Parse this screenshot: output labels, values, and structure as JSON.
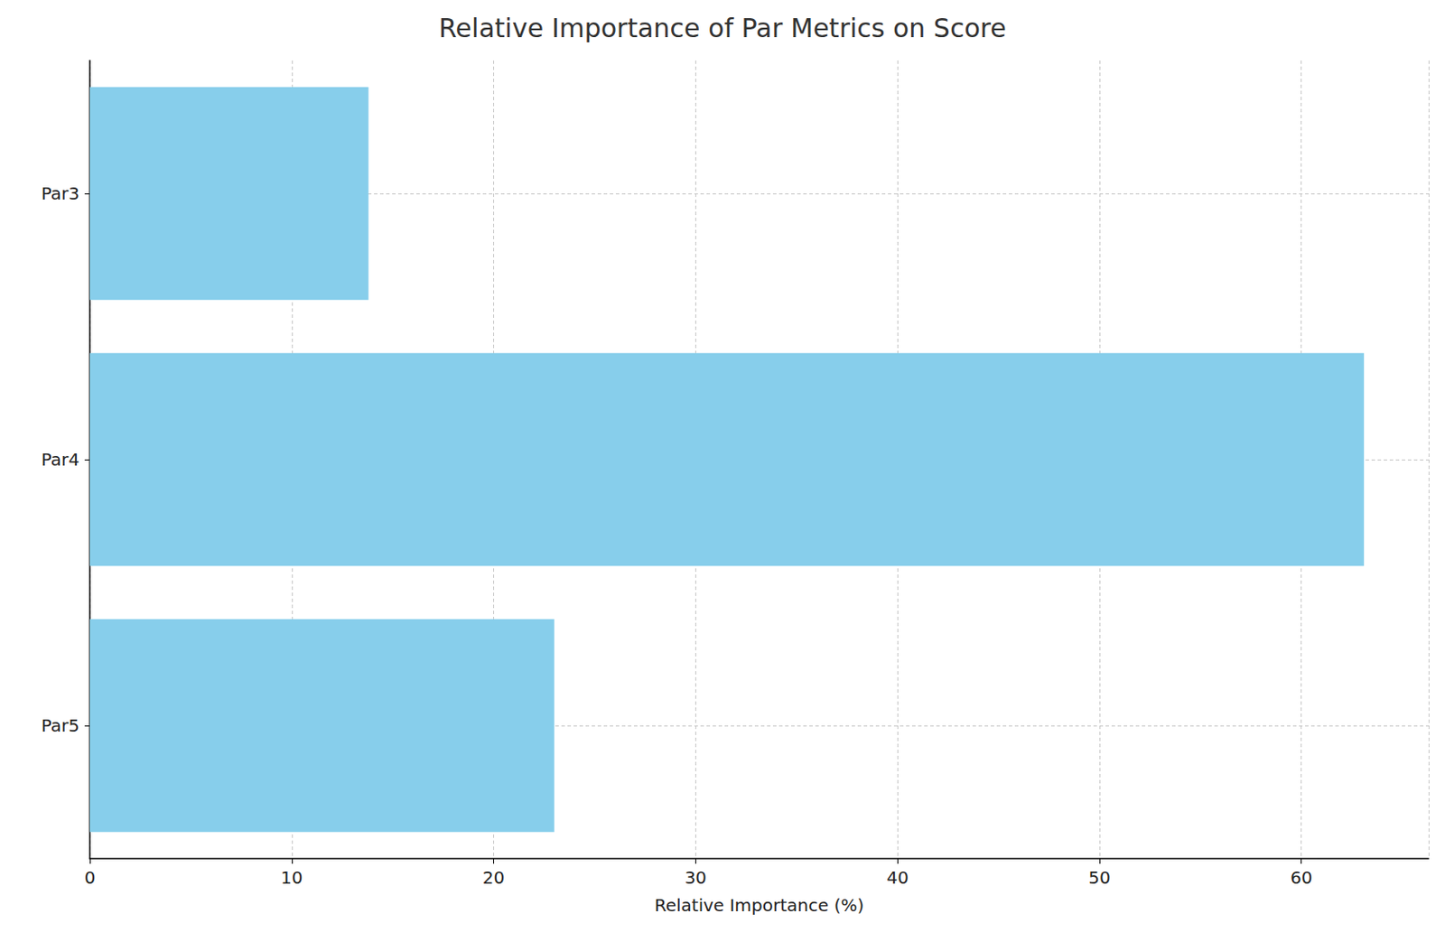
{
  "chart_data": {
    "type": "bar",
    "orientation": "horizontal",
    "title": "Relative Importance of Par Metrics on Score",
    "xlabel": "Relative Importance (%)",
    "categories": [
      "Par3",
      "Par4",
      "Par5"
    ],
    "values": [
      13.8,
      63.1,
      23.0
    ],
    "color": "#87ceeb",
    "xlim": [
      0,
      66.3
    ],
    "xticks": [
      0,
      10,
      20,
      30,
      40,
      50,
      60
    ],
    "grid": true
  }
}
